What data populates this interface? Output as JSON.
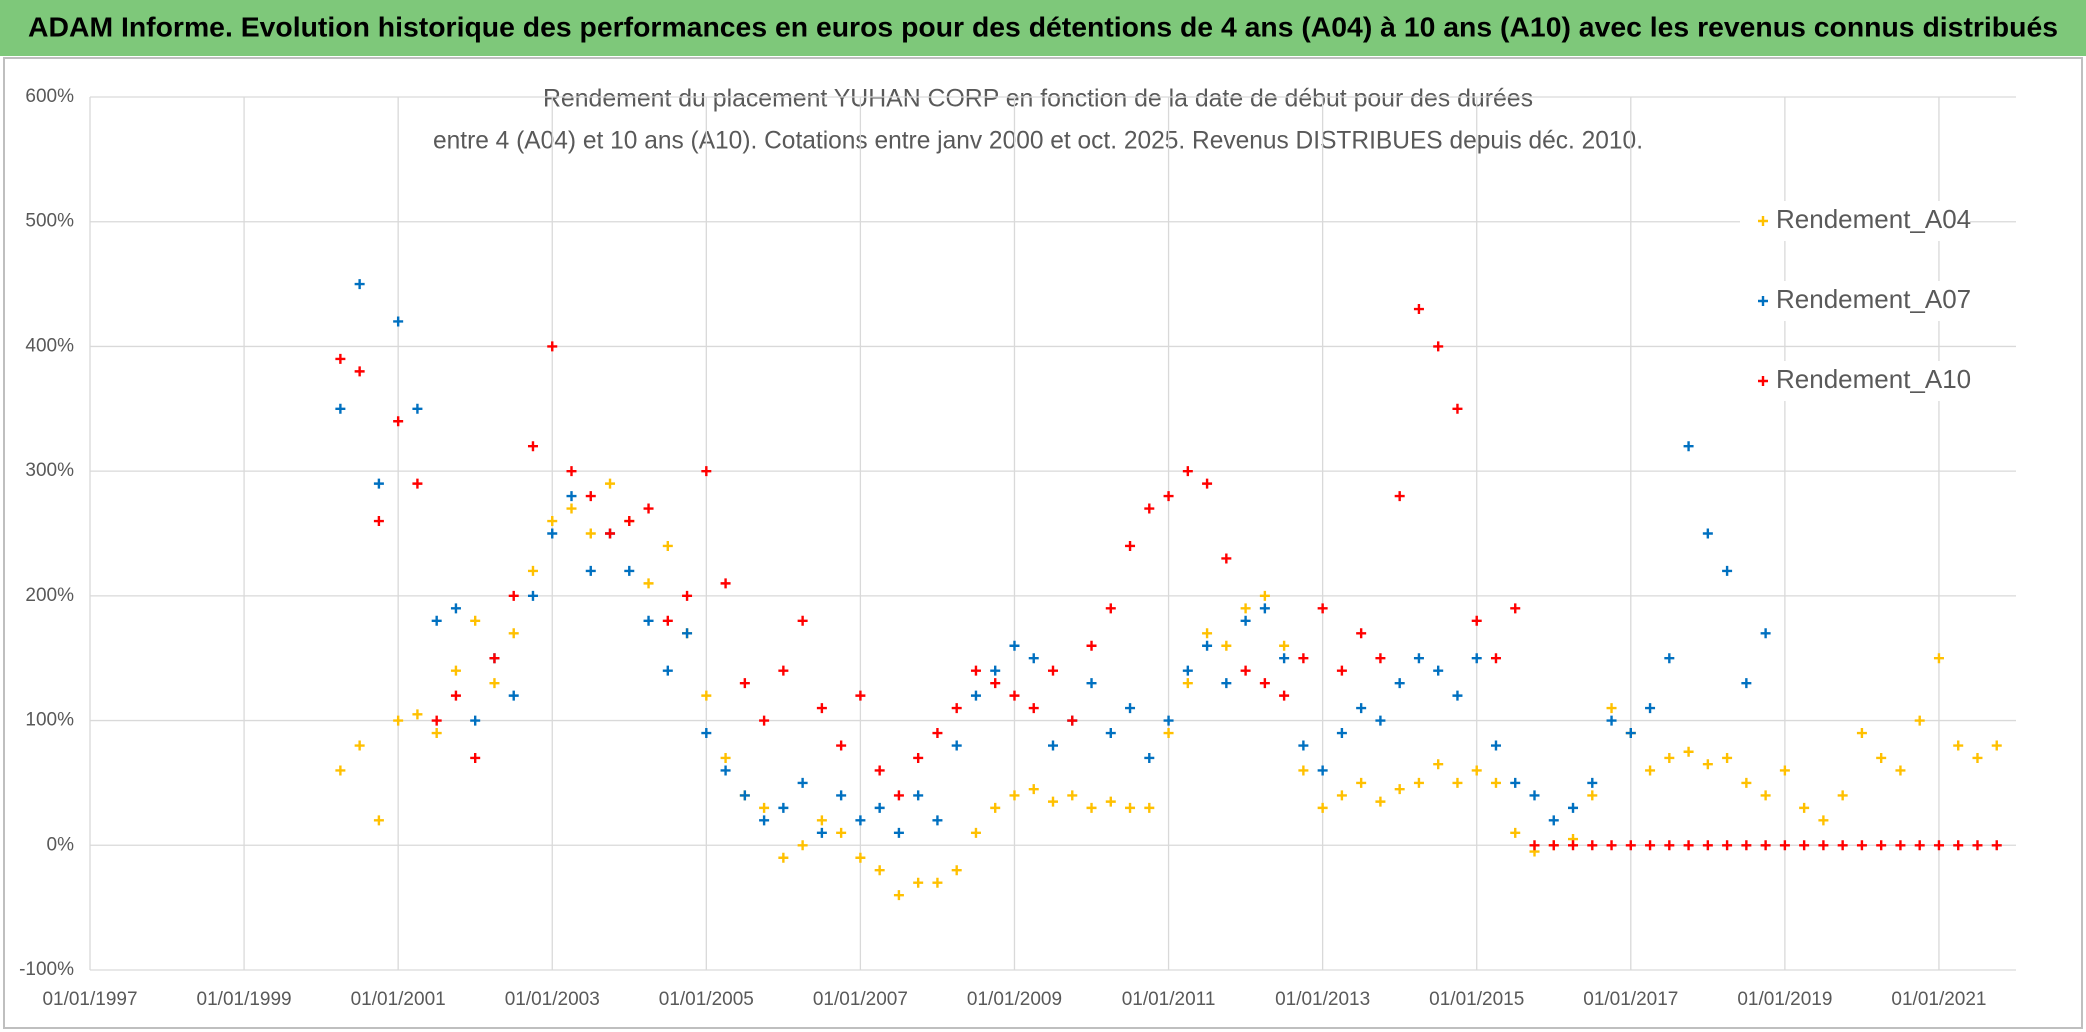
{
  "chart_data": {
    "type": "scatter",
    "banner": "ADAM Informe. Evolution historique des performances en euros pour des détentions de 4 ans (A04) à 10 ans (A10) avec les revenus connus distribués",
    "title": [
      "Rendement du placement YUHAN CORP en fonction de la date de début pour des durées",
      "entre 4 (A04) et 10 ans (A10). Cotations entre janv 2000 et oct. 2025. Revenus DISTRIBUES depuis déc. 2010."
    ],
    "xlim": [
      1997,
      2022
    ],
    "xticks": [
      {
        "value": 1997,
        "label": "01/01/1997"
      },
      {
        "value": 1999,
        "label": "01/01/1999"
      },
      {
        "value": 2001,
        "label": "01/01/2001"
      },
      {
        "value": 2003,
        "label": "01/01/2003"
      },
      {
        "value": 2005,
        "label": "01/01/2005"
      },
      {
        "value": 2007,
        "label": "01/01/2007"
      },
      {
        "value": 2009,
        "label": "01/01/2009"
      },
      {
        "value": 2011,
        "label": "01/01/2011"
      },
      {
        "value": 2013,
        "label": "01/01/2013"
      },
      {
        "value": 2015,
        "label": "01/01/2015"
      },
      {
        "value": 2017,
        "label": "01/01/2017"
      },
      {
        "value": 2019,
        "label": "01/01/2019"
      },
      {
        "value": 2021,
        "label": "01/01/2021"
      }
    ],
    "ylim": [
      -100,
      600
    ],
    "yticks": [
      {
        "value": -100,
        "label": "-100%"
      },
      {
        "value": 0,
        "label": "0%"
      },
      {
        "value": 100,
        "label": "100%"
      },
      {
        "value": 200,
        "label": "200%"
      },
      {
        "value": 300,
        "label": "300%"
      },
      {
        "value": 400,
        "label": "400%"
      },
      {
        "value": 500,
        "label": "500%"
      },
      {
        "value": 600,
        "label": "600%"
      }
    ],
    "grid": true,
    "legend": "right",
    "x": [
      2000.25,
      2000.5,
      2000.75,
      2001,
      2001.25,
      2001.5,
      2001.75,
      2002,
      2002.25,
      2002.5,
      2002.75,
      2003,
      2003.25,
      2003.5,
      2003.75,
      2004,
      2004.25,
      2004.5,
      2004.75,
      2005,
      2005.25,
      2005.5,
      2005.75,
      2006,
      2006.25,
      2006.5,
      2006.75,
      2007,
      2007.25,
      2007.5,
      2007.75,
      2008,
      2008.25,
      2008.5,
      2008.75,
      2009,
      2009.25,
      2009.5,
      2009.75,
      2010,
      2010.25,
      2010.5,
      2010.75,
      2011,
      2011.25,
      2011.5,
      2011.75,
      2012,
      2012.25,
      2012.5,
      2012.75,
      2013,
      2013.25,
      2013.5,
      2013.75,
      2014,
      2014.25,
      2014.5,
      2014.75,
      2015,
      2015.25,
      2015.5,
      2015.75,
      2016,
      2016.25,
      2016.5,
      2016.75,
      2017,
      2017.25,
      2017.5,
      2017.75,
      2018,
      2018.25,
      2018.5,
      2018.75,
      2019,
      2019.25,
      2019.5,
      2019.75,
      2020,
      2020.25,
      2020.5,
      2020.75,
      2021,
      2021.25,
      2021.5,
      2021.75
    ],
    "series": [
      {
        "name": "Rendement_A04",
        "color": "#ffc000",
        "values": [
          60,
          80,
          20,
          100,
          105,
          90,
          140,
          180,
          130,
          170,
          220,
          260,
          270,
          250,
          290,
          260,
          210,
          240,
          170,
          120,
          70,
          40,
          30,
          -10,
          0,
          20,
          10,
          -10,
          -20,
          -40,
          -30,
          -30,
          -20,
          10,
          30,
          40,
          45,
          35,
          40,
          30,
          35,
          30,
          30,
          90,
          130,
          170,
          160,
          190,
          200,
          160,
          60,
          30,
          40,
          50,
          35,
          45,
          50,
          65,
          50,
          60,
          50,
          10,
          -5,
          0,
          5,
          40,
          110,
          90,
          60,
          70,
          75,
          65,
          70,
          50,
          40,
          60,
          30,
          20,
          40,
          90,
          70,
          60,
          100,
          150,
          80,
          70,
          80
        ]
      },
      {
        "name": "Rendement_A07",
        "color": "#0070c0",
        "values": [
          350,
          450,
          290,
          420,
          350,
          180,
          190,
          100,
          150,
          120,
          200,
          250,
          280,
          220,
          250,
          220,
          180,
          140,
          170,
          90,
          60,
          40,
          20,
          30,
          50,
          10,
          40,
          20,
          30,
          10,
          40,
          20,
          80,
          120,
          140,
          160,
          150,
          80,
          100,
          130,
          90,
          110,
          70,
          100,
          140,
          160,
          130,
          180,
          190,
          150,
          80,
          60,
          90,
          110,
          100,
          130,
          150,
          140,
          120,
          150,
          80,
          50,
          40,
          20,
          30,
          50,
          100,
          90,
          110,
          150,
          320,
          250,
          220,
          130,
          170,
          null,
          null,
          null,
          null,
          null,
          null,
          null,
          null,
          null,
          null,
          null,
          null
        ]
      },
      {
        "name": "Rendement_A10",
        "color": "#ff0000",
        "values": [
          390,
          380,
          260,
          340,
          290,
          100,
          120,
          70,
          150,
          200,
          320,
          400,
          300,
          280,
          250,
          260,
          270,
          180,
          200,
          300,
          210,
          130,
          100,
          140,
          180,
          110,
          80,
          120,
          60,
          40,
          70,
          90,
          110,
          140,
          130,
          120,
          110,
          140,
          100,
          160,
          190,
          240,
          270,
          280,
          300,
          290,
          230,
          140,
          130,
          120,
          150,
          190,
          140,
          170,
          150,
          280,
          430,
          400,
          350,
          180,
          150,
          190,
          0,
          0,
          0,
          0,
          0,
          0,
          0,
          0,
          0,
          0,
          0,
          0,
          0,
          0,
          0,
          0,
          0,
          0,
          0,
          0,
          0,
          0,
          0,
          0,
          0
        ]
      }
    ]
  }
}
